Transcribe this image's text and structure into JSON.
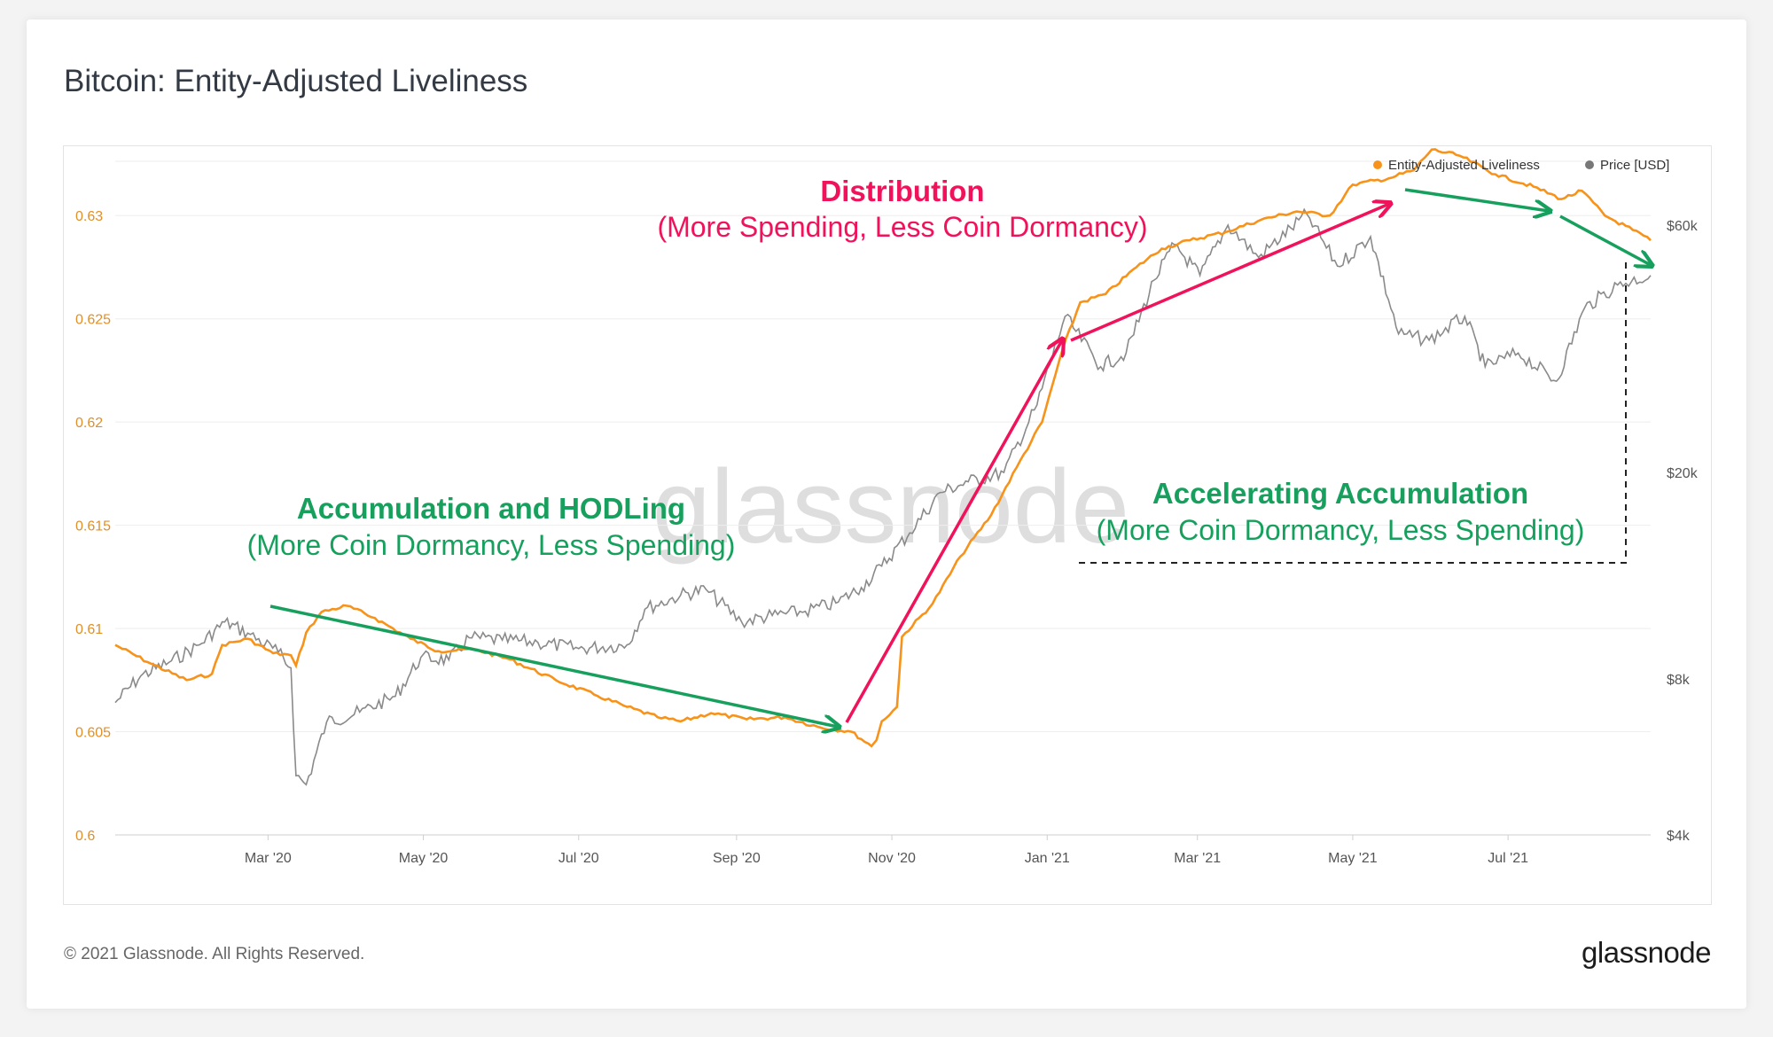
{
  "title": "Bitcoin: Entity-Adjusted Liveliness",
  "footer": "© 2021 Glassnode. All Rights Reserved.",
  "brand": "glassnode",
  "watermark": "glassnode",
  "colors": {
    "liveliness": "#f7931a",
    "price": "#8a8a8a",
    "green": "#17a05d",
    "pink": "#f0125a"
  },
  "annotations": {
    "accumulation_title": "Accumulation and HODLing",
    "accumulation_sub": "(More Coin Dormancy, Less Spending)",
    "distribution_title": "Distribution",
    "distribution_sub": "(More Spending, Less Coin Dormancy)",
    "accelerating_title": "Accelerating Accumulation",
    "accelerating_sub": "(More Coin Dormancy, Less Spending)"
  },
  "chart_data": {
    "type": "line",
    "title": "Bitcoin: Entity-Adjusted Liveliness",
    "legend_position": "top-right",
    "grid": true,
    "x_ticks": [
      "Mar '20",
      "May '20",
      "Jul '20",
      "Sep '20",
      "Nov '20",
      "Jan '21",
      "Mar '21",
      "May '21",
      "Jul '21"
    ],
    "y_left_ticks": [
      "0.6",
      "0.605",
      "0.61",
      "0.615",
      "0.62",
      "0.625",
      "0.63"
    ],
    "y_left_range": [
      0.6,
      0.6325
    ],
    "y_right_ticks": [
      "$4k",
      "$8k",
      "$20k",
      "$60k"
    ],
    "y_right_scale": "log",
    "x_range": [
      "2020-01-01",
      "2021-08-26"
    ],
    "series": [
      {
        "name": "Entity-Adjusted Liveliness",
        "axis": "left",
        "points": [
          [
            "2020-01-01",
            0.6092
          ],
          [
            "2020-01-15",
            0.6083
          ],
          [
            "2020-01-29",
            0.6075
          ],
          [
            "2020-02-08",
            0.6078
          ],
          [
            "2020-02-12",
            0.6092
          ],
          [
            "2020-02-22",
            0.6095
          ],
          [
            "2020-03-03",
            0.6088
          ],
          [
            "2020-03-10",
            0.6087
          ],
          [
            "2020-03-12",
            0.6082
          ],
          [
            "2020-03-16",
            0.6098
          ],
          [
            "2020-03-22",
            0.6108
          ],
          [
            "2020-04-01",
            0.6111
          ],
          [
            "2020-04-12",
            0.6105
          ],
          [
            "2020-04-26",
            0.6095
          ],
          [
            "2020-05-07",
            0.6089
          ],
          [
            "2020-05-21",
            0.609
          ],
          [
            "2020-06-04",
            0.6085
          ],
          [
            "2020-06-22",
            0.6075
          ],
          [
            "2020-07-07",
            0.6068
          ],
          [
            "2020-07-20",
            0.6062
          ],
          [
            "2020-08-01",
            0.6057
          ],
          [
            "2020-08-10",
            0.6055
          ],
          [
            "2020-08-22",
            0.6059
          ],
          [
            "2020-09-05",
            0.6056
          ],
          [
            "2020-09-20",
            0.6057
          ],
          [
            "2020-10-04",
            0.6052
          ],
          [
            "2020-10-16",
            0.605
          ],
          [
            "2020-10-24",
            0.6043
          ],
          [
            "2020-10-26",
            0.6046
          ],
          [
            "2020-10-28",
            0.6055
          ],
          [
            "2020-11-03",
            0.6062
          ],
          [
            "2020-11-05",
            0.6096
          ],
          [
            "2020-11-17",
            0.6112
          ],
          [
            "2020-11-28",
            0.6135
          ],
          [
            "2020-12-10",
            0.6155
          ],
          [
            "2020-12-20",
            0.6178
          ],
          [
            "2020-12-30",
            0.62
          ],
          [
            "2021-01-07",
            0.6235
          ],
          [
            "2021-01-14",
            0.6258
          ],
          [
            "2021-01-24",
            0.6262
          ],
          [
            "2021-02-05",
            0.6275
          ],
          [
            "2021-02-15",
            0.6284
          ],
          [
            "2021-02-26",
            0.6288
          ],
          [
            "2021-03-12",
            0.6292
          ],
          [
            "2021-03-26",
            0.6298
          ],
          [
            "2021-04-09",
            0.6302
          ],
          [
            "2021-04-22",
            0.63
          ],
          [
            "2021-05-01",
            0.6315
          ],
          [
            "2021-05-15",
            0.6318
          ],
          [
            "2021-05-25",
            0.6322
          ],
          [
            "2021-06-01",
            0.6332
          ],
          [
            "2021-06-12",
            0.6329
          ],
          [
            "2021-06-26",
            0.632
          ],
          [
            "2021-07-11",
            0.6314
          ],
          [
            "2021-07-22",
            0.6308
          ],
          [
            "2021-07-30",
            0.6312
          ],
          [
            "2021-08-08",
            0.63
          ],
          [
            "2021-08-19",
            0.6293
          ],
          [
            "2021-08-26",
            0.6288
          ]
        ]
      },
      {
        "name": "Price [USD]",
        "axis": "right",
        "points": [
          [
            "2020-01-01",
            7200
          ],
          [
            "2020-01-11",
            8100
          ],
          [
            "2020-01-22",
            8600
          ],
          [
            "2020-02-03",
            9300
          ],
          [
            "2020-02-13",
            10300
          ],
          [
            "2020-02-22",
            9800
          ],
          [
            "2020-03-05",
            9000
          ],
          [
            "2020-03-10",
            8400
          ],
          [
            "2020-03-12",
            5200
          ],
          [
            "2020-03-16",
            5000
          ],
          [
            "2020-03-24",
            6600
          ],
          [
            "2020-04-06",
            6900
          ],
          [
            "2020-04-20",
            7400
          ],
          [
            "2020-04-30",
            8800
          ],
          [
            "2020-05-11",
            8700
          ],
          [
            "2020-05-19",
            9600
          ],
          [
            "2020-06-01",
            9500
          ],
          [
            "2020-06-15",
            9400
          ],
          [
            "2020-07-01",
            9150
          ],
          [
            "2020-07-20",
            9300
          ],
          [
            "2020-07-27",
            10900
          ],
          [
            "2020-08-10",
            11600
          ],
          [
            "2020-08-20",
            11900
          ],
          [
            "2020-09-03",
            10300
          ],
          [
            "2020-09-15",
            10600
          ],
          [
            "2020-09-28",
            10800
          ],
          [
            "2020-10-10",
            11200
          ],
          [
            "2020-10-20",
            12000
          ],
          [
            "2020-10-28",
            13200
          ],
          [
            "2020-11-08",
            15300
          ],
          [
            "2020-11-20",
            18300
          ],
          [
            "2020-12-01",
            19200
          ],
          [
            "2020-12-15",
            20000
          ],
          [
            "2020-12-28",
            27000
          ],
          [
            "2021-01-08",
            40000
          ],
          [
            "2021-01-22",
            32000
          ],
          [
            "2021-02-01",
            34000
          ],
          [
            "2021-02-12",
            47000
          ],
          [
            "2021-02-20",
            55000
          ],
          [
            "2021-03-02",
            48000
          ],
          [
            "2021-03-13",
            60000
          ],
          [
            "2021-03-25",
            52000
          ],
          [
            "2021-04-13",
            63000
          ],
          [
            "2021-04-25",
            50000
          ],
          [
            "2021-05-08",
            57000
          ],
          [
            "2021-05-19",
            37000
          ],
          [
            "2021-05-31",
            36000
          ],
          [
            "2021-06-14",
            40000
          ],
          [
            "2021-06-22",
            32000
          ],
          [
            "2021-07-05",
            34000
          ],
          [
            "2021-07-20",
            30000
          ],
          [
            "2021-07-31",
            41500
          ],
          [
            "2021-08-13",
            46000
          ],
          [
            "2021-08-26",
            48000
          ]
        ]
      }
    ]
  }
}
